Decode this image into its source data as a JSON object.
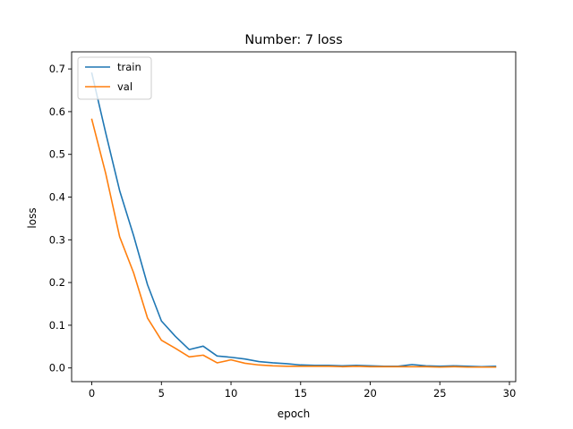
{
  "chart_data": {
    "type": "line",
    "title": "Number: 7 loss",
    "xlabel": "epoch",
    "ylabel": "loss",
    "xlim": [
      -1.45,
      30.45
    ],
    "ylim": [
      -0.032,
      0.74
    ],
    "xticks": [
      0,
      5,
      10,
      15,
      20,
      25,
      30
    ],
    "xtick_labels": [
      "0",
      "5",
      "10",
      "15",
      "20",
      "25",
      "30"
    ],
    "yticks": [
      0.0,
      0.1,
      0.2,
      0.3,
      0.4,
      0.5,
      0.6,
      0.7
    ],
    "ytick_labels": [
      "0.0",
      "0.1",
      "0.2",
      "0.3",
      "0.4",
      "0.5",
      "0.6",
      "0.7"
    ],
    "grid": false,
    "legend": "upper-left",
    "x": [
      0,
      1,
      2,
      3,
      4,
      5,
      6,
      7,
      8,
      9,
      10,
      11,
      12,
      13,
      14,
      15,
      16,
      17,
      18,
      19,
      20,
      21,
      22,
      23,
      24,
      25,
      26,
      27,
      28,
      29
    ],
    "series": [
      {
        "name": "train",
        "color": "#1f77b4",
        "values": [
          0.69,
          0.55,
          0.415,
          0.31,
          0.195,
          0.11,
          0.074,
          0.043,
          0.051,
          0.028,
          0.025,
          0.021,
          0.015,
          0.012,
          0.01,
          0.007,
          0.006,
          0.006,
          0.005,
          0.006,
          0.005,
          0.004,
          0.004,
          0.008,
          0.005,
          0.004,
          0.005,
          0.004,
          0.003,
          0.004
        ]
      },
      {
        "name": "val",
        "color": "#ff7f0e",
        "values": [
          0.582,
          0.455,
          0.307,
          0.223,
          0.117,
          0.065,
          0.046,
          0.026,
          0.03,
          0.012,
          0.019,
          0.011,
          0.007,
          0.005,
          0.004,
          0.004,
          0.004,
          0.004,
          0.003,
          0.004,
          0.003,
          0.003,
          0.003,
          0.003,
          0.003,
          0.002,
          0.003,
          0.002,
          0.002,
          0.002
        ]
      }
    ]
  }
}
